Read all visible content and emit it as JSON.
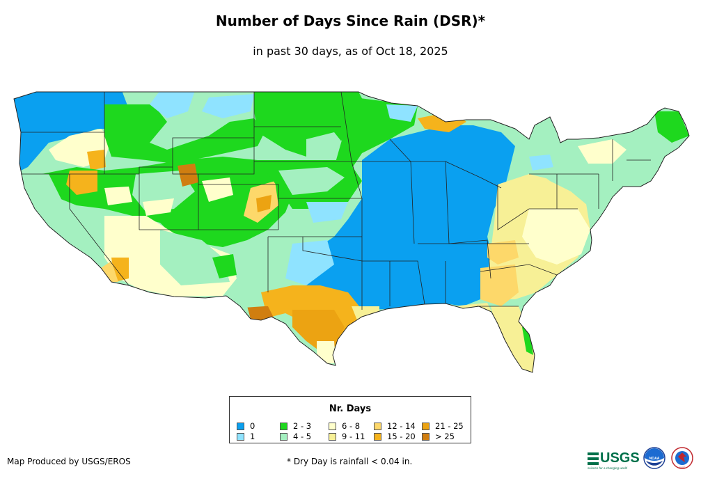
{
  "title": "Number of Days Since Rain (DSR)*",
  "subtitle": "in past 30 days, as of Oct 18, 2025",
  "legend": {
    "title": "Nr. Days",
    "items": [
      {
        "label": "0",
        "color": "#0aa0f0"
      },
      {
        "label": "1",
        "color": "#8fe3ff"
      },
      {
        "label": "2 - 3",
        "color": "#1ed81e"
      },
      {
        "label": "4 - 5",
        "color": "#a4f0c0"
      },
      {
        "label": "6 - 8",
        "color": "#ffffcc"
      },
      {
        "label": "9 - 11",
        "color": "#f7f096"
      },
      {
        "label": "12 - 14",
        "color": "#fdd86a"
      },
      {
        "label": "15 - 20",
        "color": "#f5b31c"
      },
      {
        "label": "21 - 25",
        "color": "#eca312"
      },
      {
        "label": "> 25",
        "color": "#d07e10"
      }
    ]
  },
  "credit": "Map Produced by USGS/EROS",
  "footnote": "* Dry Day is rainfall < 0.04 in.",
  "logos": {
    "usgs": "USGS",
    "usgs_tagline": "science for a changing world",
    "noaa": "NOAA",
    "nws": "NWS"
  }
}
